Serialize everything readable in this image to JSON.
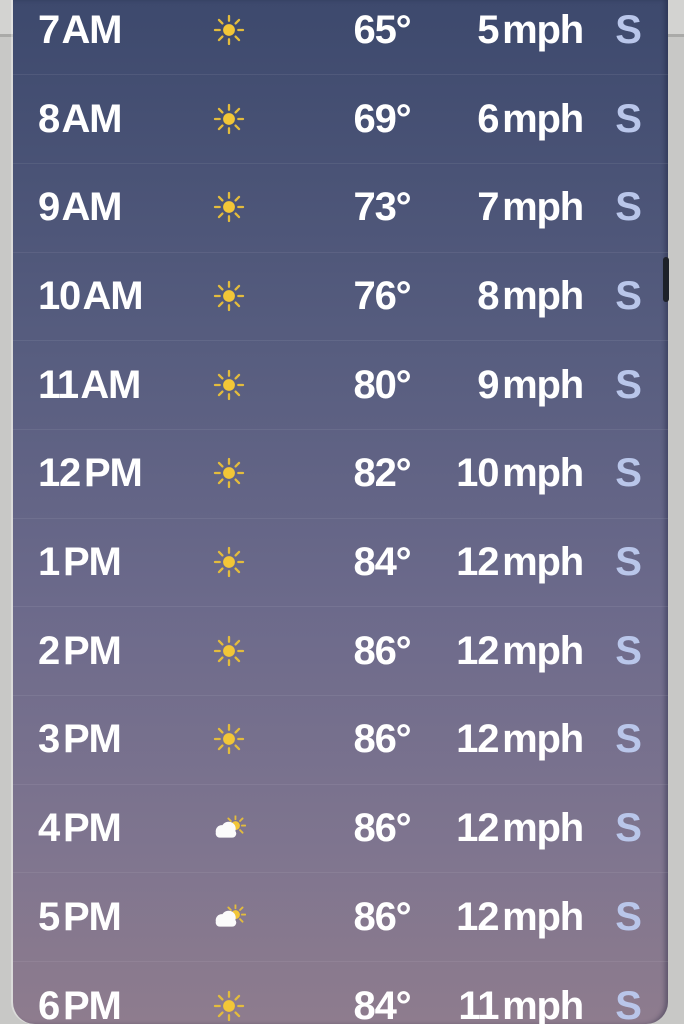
{
  "sheet": {
    "name": "hourly-forecast-sheet"
  },
  "colors": {
    "backdrop": "#c8c8c6",
    "backdrop_light": "#d3d3d1",
    "backdrop_divider": "#aaaaa8",
    "gradient_stops": [
      [
        "#3d496d",
        "0%"
      ],
      [
        "#575d7f",
        "34%"
      ],
      [
        "#6c6a8b",
        "59%"
      ],
      [
        "#7f758f",
        "83%"
      ],
      [
        "#8e7c8e",
        "100%"
      ]
    ],
    "text": "#ffffff",
    "direction_text": "#b9c6ea",
    "sun": "#f2c637",
    "ray": "#e3bc3d",
    "cloud": "#fbfbfb",
    "scroll_thumb": "#1d2129"
  },
  "rows": [
    {
      "time": "7 AM",
      "icon": "sun-icon",
      "temperature": "65°",
      "wind": "5 mph",
      "direction": "S"
    },
    {
      "time": "8 AM",
      "icon": "sun-icon",
      "temperature": "69°",
      "wind": "6 mph",
      "direction": "S"
    },
    {
      "time": "9 AM",
      "icon": "sun-icon",
      "temperature": "73°",
      "wind": "7 mph",
      "direction": "S"
    },
    {
      "time": "10 AM",
      "icon": "sun-icon",
      "temperature": "76°",
      "wind": "8 mph",
      "direction": "S"
    },
    {
      "time": "11 AM",
      "icon": "sun-icon",
      "temperature": "80°",
      "wind": "9 mph",
      "direction": "S"
    },
    {
      "time": "12 PM",
      "icon": "sun-icon",
      "temperature": "82°",
      "wind": "10 mph",
      "direction": "S"
    },
    {
      "time": "1 PM",
      "icon": "sun-icon",
      "temperature": "84°",
      "wind": "12 mph",
      "direction": "S"
    },
    {
      "time": "2 PM",
      "icon": "sun-icon",
      "temperature": "86°",
      "wind": "12 mph",
      "direction": "S"
    },
    {
      "time": "3 PM",
      "icon": "sun-icon",
      "temperature": "86°",
      "wind": "12 mph",
      "direction": "S"
    },
    {
      "time": "4 PM",
      "icon": "sun-behind-cloud-icon",
      "temperature": "86°",
      "wind": "12 mph",
      "direction": "S"
    },
    {
      "time": "5 PM",
      "icon": "sun-behind-cloud-icon",
      "temperature": "86°",
      "wind": "12 mph",
      "direction": "S"
    },
    {
      "time": "6 PM",
      "icon": "sun-icon",
      "temperature": "84°",
      "wind": "11 mph",
      "direction": "S"
    }
  ]
}
